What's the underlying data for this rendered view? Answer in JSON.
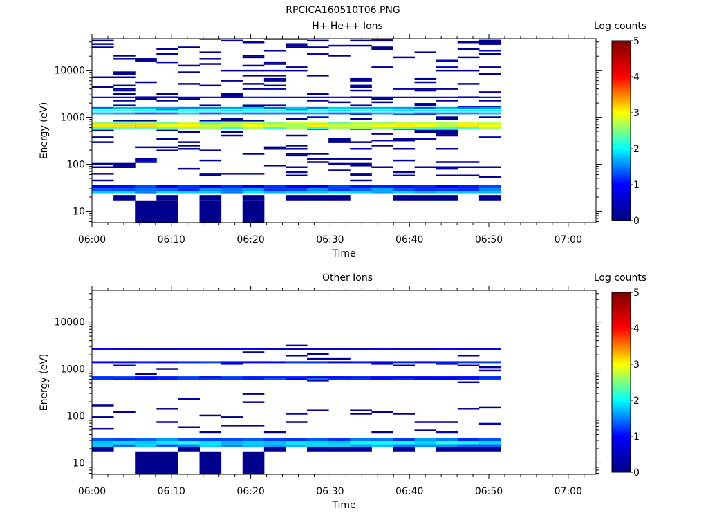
{
  "figure": {
    "title": "RPCICA160510T06.PNG"
  },
  "colormap": {
    "name": "jet",
    "stops": [
      "#00007f",
      "#0000ff",
      "#00ffff",
      "#ffff00",
      "#ff0000",
      "#7f0000"
    ]
  },
  "chart_data": [
    {
      "type": "heatmap",
      "title": "H+ He++ Ions",
      "xlabel": "Time",
      "ylabel": "Energy (eV)",
      "colorbar_label": "Log counts",
      "colorbar_ticks": [
        "0",
        "1",
        "2",
        "3",
        "4",
        "5"
      ],
      "clim": [
        0,
        5
      ],
      "yscale": "log",
      "ylim": [
        5.7,
        47000
      ],
      "xlim_minutes": [
        0,
        63.5
      ],
      "x_tick_labels": [
        "06:00",
        "06:10",
        "06:20",
        "06:30",
        "06:40",
        "06:50",
        "07:00"
      ],
      "y_tick_labels": [
        "10",
        "100",
        "1000",
        "10000"
      ],
      "time_bins": [
        "06:00",
        "06:03",
        "06:06",
        "06:10",
        "06:13",
        "06:16",
        "06:19",
        "06:22",
        "06:26",
        "06:29",
        "06:32",
        "06:35",
        "06:38",
        "06:42",
        "06:45",
        "06:48",
        "06:51",
        "06:54",
        "06:58"
      ],
      "bands": [
        {
          "e_lo": 24,
          "e_hi": 27,
          "value": 1.7
        },
        {
          "e_lo": 27,
          "e_hi": 31,
          "value": 1.4
        },
        {
          "e_lo": 31,
          "e_hi": 36,
          "value": 1.1
        },
        {
          "e_lo": 560,
          "e_hi": 620,
          "value": 2.4
        },
        {
          "e_lo": 620,
          "e_hi": 700,
          "value": 2.9
        },
        {
          "e_lo": 700,
          "e_hi": 780,
          "value": 2.6
        },
        {
          "e_lo": 1150,
          "e_hi": 1270,
          "value": 1.6
        },
        {
          "e_lo": 1320,
          "e_hi": 1450,
          "value": 2.0
        },
        {
          "e_lo": 1500,
          "e_hi": 1650,
          "value": 1.6
        },
        {
          "e_lo": 2550,
          "e_hi": 2750,
          "value": 0.8
        }
      ]
    },
    {
      "type": "heatmap",
      "title": "Other Ions",
      "xlabel": "Time",
      "ylabel": "Energy (eV)",
      "colorbar_label": "Log counts",
      "colorbar_ticks": [
        "0",
        "1",
        "2",
        "3",
        "4",
        "5"
      ],
      "clim": [
        0,
        5
      ],
      "yscale": "log",
      "ylim": [
        5.7,
        47000
      ],
      "xlim_minutes": [
        0,
        63.5
      ],
      "x_tick_labels": [
        "06:00",
        "06:10",
        "06:20",
        "06:30",
        "06:40",
        "06:50",
        "07:00"
      ],
      "y_tick_labels": [
        "10",
        "100",
        "1000",
        "10000"
      ],
      "time_bins": [
        "06:00",
        "06:03",
        "06:06",
        "06:10",
        "06:13",
        "06:16",
        "06:19",
        "06:22",
        "06:26",
        "06:29",
        "06:32",
        "06:35",
        "06:38",
        "06:42",
        "06:45",
        "06:48",
        "06:51",
        "06:54",
        "06:58"
      ],
      "bands": [
        {
          "e_lo": 22,
          "e_hi": 25,
          "value": 1.6
        },
        {
          "e_lo": 25,
          "e_hi": 29,
          "value": 1.9
        },
        {
          "e_lo": 29,
          "e_hi": 34,
          "value": 1.4
        },
        {
          "e_lo": 590,
          "e_hi": 640,
          "value": 1.2
        },
        {
          "e_lo": 640,
          "e_hi": 700,
          "value": 1.0
        },
        {
          "e_lo": 1320,
          "e_hi": 1460,
          "value": 1.0
        },
        {
          "e_lo": 2550,
          "e_hi": 2750,
          "value": 0.7
        }
      ]
    }
  ]
}
